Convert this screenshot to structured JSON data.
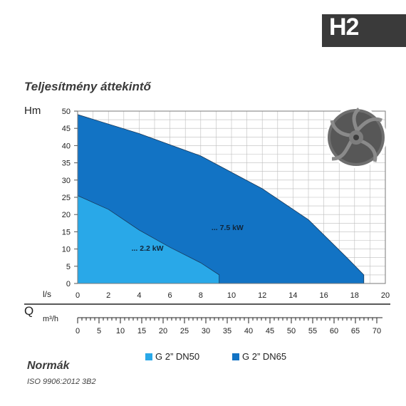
{
  "header": {
    "badge": "H2"
  },
  "section_title": "Teljesítmény áttekintő",
  "norms": {
    "title": "Normák",
    "value": "ISO 9906:2012 3B2"
  },
  "colors": {
    "dn50": "#29a8e8",
    "dn65": "#1273c4",
    "grid": "#bdbdbd",
    "badge": "#3a3a3a"
  },
  "chart_data": {
    "type": "area",
    "y_axis_label": "Hm",
    "x_axis_unit": "l/s",
    "q_label": "Q",
    "secondary_axis_unit": "m³/h",
    "ylim": [
      0,
      50
    ],
    "xlim": [
      0,
      20
    ],
    "y_ticks": [
      0,
      5,
      10,
      15,
      20,
      25,
      30,
      35,
      40,
      45,
      50
    ],
    "x_ticks": [
      0,
      2,
      4,
      6,
      8,
      10,
      12,
      14,
      16,
      18,
      20
    ],
    "secondary_ticks": [
      0,
      5,
      10,
      15,
      20,
      25,
      30,
      35,
      40,
      45,
      50,
      55,
      60,
      65,
      70
    ],
    "grid": true,
    "series": [
      {
        "name": "G 2” DN65",
        "power_label": "... 7.5 kW",
        "label_at": [
          8.7,
          15.5
        ],
        "color": "#1273c4",
        "points": [
          [
            0,
            49
          ],
          [
            4,
            43.5
          ],
          [
            8,
            37
          ],
          [
            12,
            27.5
          ],
          [
            15,
            18.5
          ],
          [
            17.5,
            7.5
          ],
          [
            18.6,
            2.5
          ]
        ]
      },
      {
        "name": "G 2” DN50",
        "power_label": "... 2.2 kW",
        "label_at": [
          3.5,
          9.5
        ],
        "color": "#29a8e8",
        "points": [
          [
            0,
            25.5
          ],
          [
            2,
            21.5
          ],
          [
            4,
            15.5
          ],
          [
            6,
            10.5
          ],
          [
            8,
            6
          ],
          [
            9.2,
            2.5
          ]
        ]
      }
    ]
  }
}
